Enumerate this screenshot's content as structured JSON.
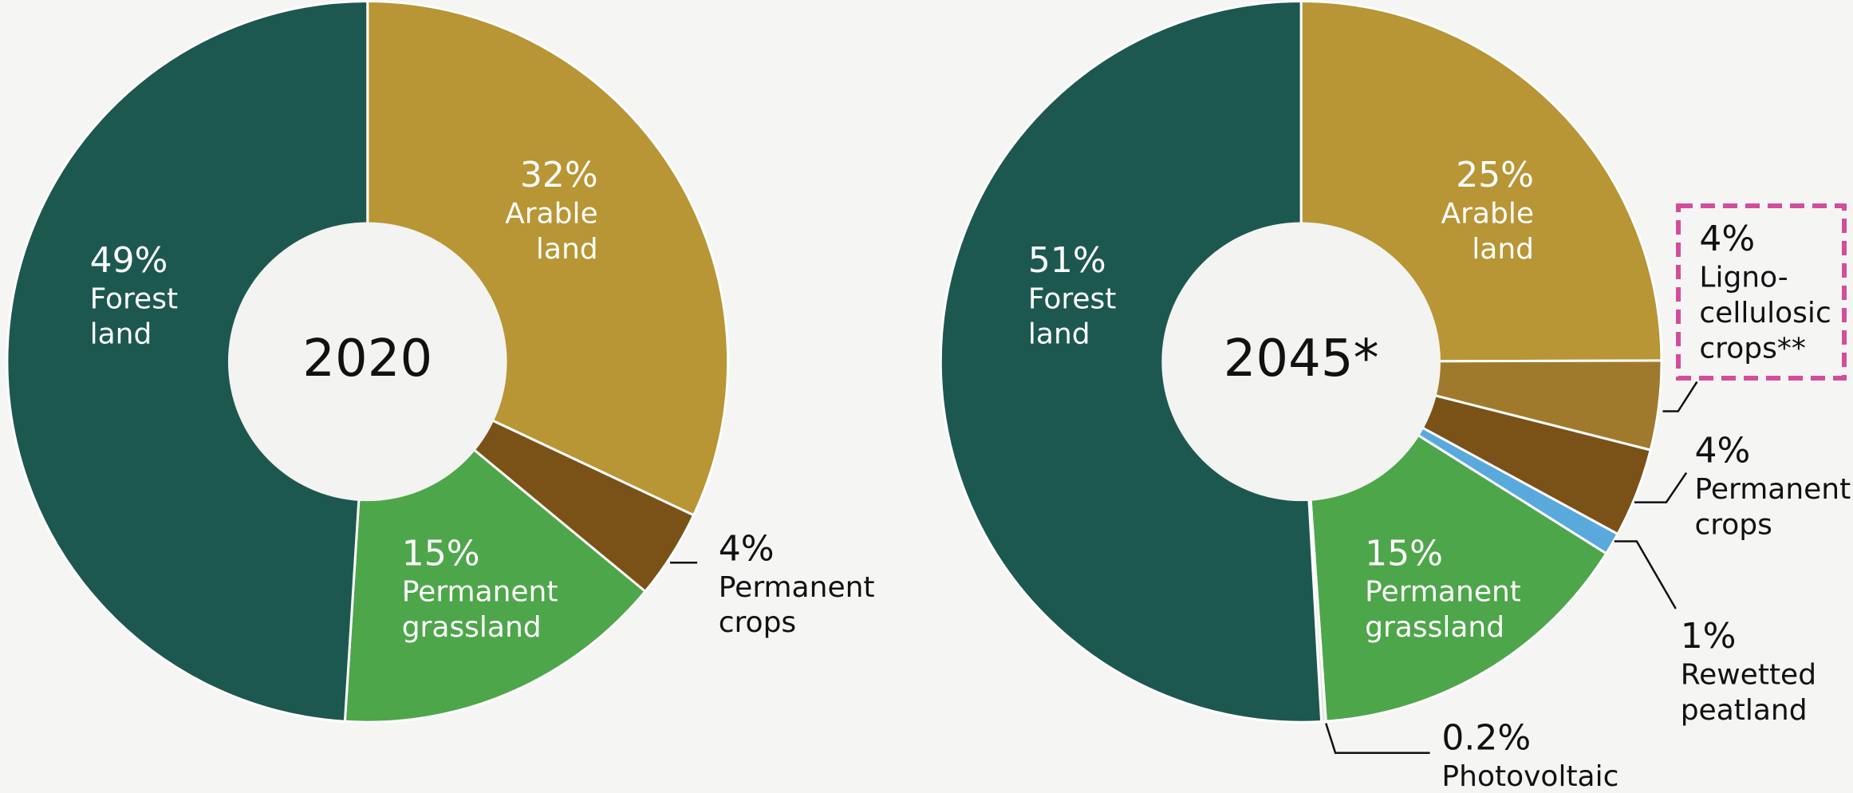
{
  "chart_data": [
    {
      "type": "pie",
      "title": "2020",
      "categories": [
        [
          "Arable",
          "land"
        ],
        [
          "Permanent",
          "crops"
        ],
        [
          "Permanent",
          "grassland"
        ],
        [
          "Forest",
          "land"
        ]
      ],
      "values": [
        32,
        4,
        15,
        49
      ],
      "value_labels": [
        "32%",
        "4%",
        "15%",
        "49%"
      ],
      "colors": [
        "#b89535",
        "#7a5218",
        "#4ea64a",
        "#1d5850"
      ]
    },
    {
      "type": "pie",
      "title": "2045*",
      "categories": [
        [
          "Arable",
          "land"
        ],
        [
          "Ligno-",
          "cellulosic",
          "crops**"
        ],
        [
          "Permanent",
          "crops"
        ],
        [
          "Rewetted",
          "peatland"
        ],
        [
          "Permanent",
          "grassland"
        ],
        [
          "Photovoltaic"
        ],
        [
          "Forest",
          "land"
        ]
      ],
      "values": [
        25,
        4,
        4,
        1,
        15,
        0.2,
        51
      ],
      "value_labels": [
        "25%",
        "4%",
        "4%",
        "1%",
        "15%",
        "0.2%",
        "51%"
      ],
      "colors": [
        "#b89535",
        "#a07a2c",
        "#7a5218",
        "#5aa9dc",
        "#4ea64a",
        "#e6e6e6",
        "#1d5850"
      ]
    }
  ]
}
